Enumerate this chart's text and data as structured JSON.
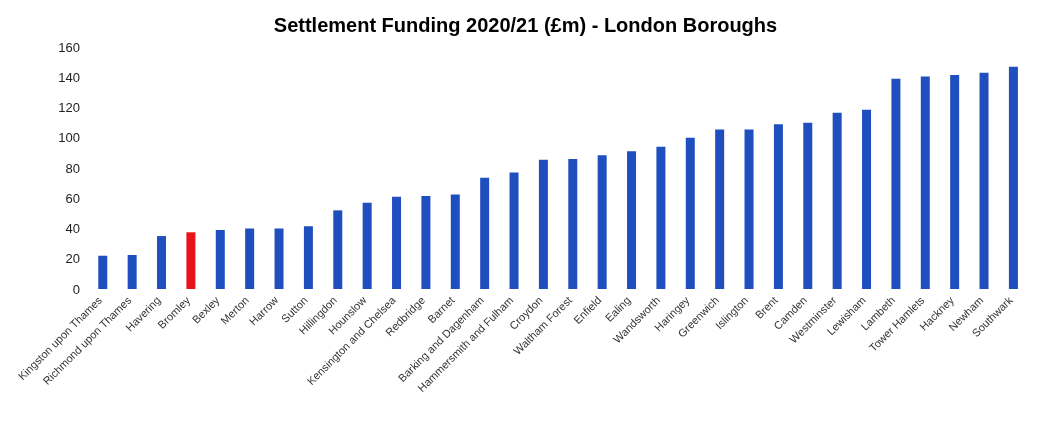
{
  "chart_data": {
    "type": "bar",
    "title": "Settlement Funding 2020/21 (£m) - London Boroughs",
    "categories": [
      "Kingston upon Thames",
      "Richmond upon Thames",
      "Havering",
      "Bromley",
      "Bexley",
      "Merton",
      "Harrow",
      "Sutton",
      "Hillingdon",
      "Hounslow",
      "Kensington and Chelsea",
      "Redbridge",
      "Barnet",
      "Barking and Dagenham",
      "Hammersmith and Fulham",
      "Croydon",
      "Waltham Forest",
      "Enfield",
      "Ealing",
      "Wandsworth",
      "Haringey",
      "Greenwich",
      "Islington",
      "Brent",
      "Camden",
      "Westminster",
      "Lewisham",
      "Lambeth",
      "Tower Hamlets",
      "Hackney",
      "Newham",
      "Southwark"
    ],
    "values": [
      22,
      22.5,
      35,
      37.5,
      39,
      40,
      40,
      41.5,
      52,
      57,
      61,
      61.5,
      62.5,
      73.5,
      77,
      85.5,
      86,
      88.5,
      91,
      94,
      100,
      105.5,
      105.5,
      109,
      110,
      116.5,
      118.5,
      139,
      140.5,
      141.5,
      143,
      147
    ],
    "colors": [
      "#1f4fbf",
      "#1f4fbf",
      "#1f4fbf",
      "#e8141c",
      "#1f4fbf",
      "#1f4fbf",
      "#1f4fbf",
      "#1f4fbf",
      "#1f4fbf",
      "#1f4fbf",
      "#1f4fbf",
      "#1f4fbf",
      "#1f4fbf",
      "#1f4fbf",
      "#1f4fbf",
      "#1f4fbf",
      "#1f4fbf",
      "#1f4fbf",
      "#1f4fbf",
      "#1f4fbf",
      "#1f4fbf",
      "#1f4fbf",
      "#1f4fbf",
      "#1f4fbf",
      "#1f4fbf",
      "#1f4fbf",
      "#1f4fbf",
      "#1f4fbf",
      "#1f4fbf",
      "#1f4fbf",
      "#1f4fbf",
      "#1f4fbf"
    ],
    "ylim": [
      0,
      160
    ],
    "yticks": [
      0,
      20,
      40,
      60,
      80,
      100,
      120,
      140,
      160
    ]
  }
}
